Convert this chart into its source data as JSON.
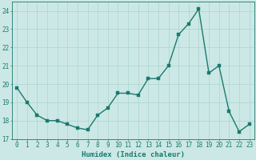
{
  "x": [
    0,
    1,
    2,
    3,
    4,
    5,
    6,
    7,
    8,
    9,
    10,
    11,
    12,
    13,
    14,
    15,
    16,
    17,
    18,
    19,
    20,
    21,
    22,
    23
  ],
  "y": [
    19.8,
    19.0,
    18.3,
    18.0,
    18.0,
    17.8,
    17.6,
    17.5,
    18.3,
    18.7,
    19.5,
    19.5,
    19.4,
    20.3,
    20.3,
    21.0,
    22.7,
    23.3,
    24.1,
    20.6,
    21.0,
    18.5,
    17.4,
    17.8
  ],
  "line_color": "#1a7a6e",
  "marker_color": "#1a7a6e",
  "bg_color": "#cce8e6",
  "grid_color": "#aad4d0",
  "xlabel": "Humidex (Indice chaleur)",
  "ylim": [
    17,
    24.5
  ],
  "xlim": [
    -0.5,
    23.5
  ],
  "yticks": [
    17,
    18,
    19,
    20,
    21,
    22,
    23,
    24
  ],
  "xticks": [
    0,
    1,
    2,
    3,
    4,
    5,
    6,
    7,
    8,
    9,
    10,
    11,
    12,
    13,
    14,
    15,
    16,
    17,
    18,
    19,
    20,
    21,
    22,
    23
  ],
  "text_color": "#1a7a6e",
  "xlabel_fontsize": 6.5,
  "tick_fontsize": 5.5,
  "line_width": 1.0,
  "marker_size": 2.2
}
